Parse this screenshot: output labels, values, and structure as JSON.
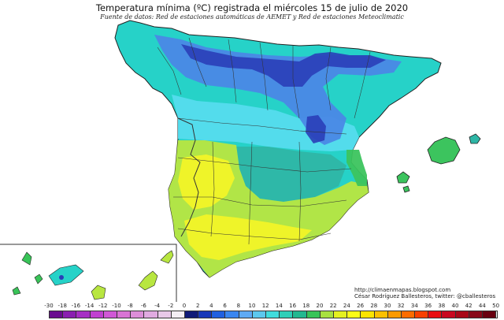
{
  "title": "Temperatura mínima (ºC) registrada el miércoles 15 de julio de 2020",
  "subtitle": "Fuente de datos: Red de estaciones automáticas de AEMET y Red de estaciones Meteoclimatic",
  "credit": {
    "url": "http://climaenmapas.blogspot.com",
    "author": "César Rodríguez Ballesteros, twitter: @cballesteros"
  },
  "legend": {
    "labels": [
      "-30",
      "-18",
      "-16",
      "-14",
      "-12",
      "-10",
      "-8",
      "-6",
      "-4",
      "-2",
      "0",
      "2",
      "4",
      "6",
      "8",
      "10",
      "12",
      "14",
      "16",
      "18",
      "20",
      "22",
      "24",
      "26",
      "28",
      "30",
      "32",
      "34",
      "36",
      "38",
      "40",
      "42",
      "44",
      "50"
    ],
    "colors": [
      "#6a0d8f",
      "#8a1fb0",
      "#a62fc4",
      "#c040d0",
      "#d058d6",
      "#d874d4",
      "#dc8ed8",
      "#e0aae0",
      "#e8c8e8",
      "#f4eef4",
      "#101a78",
      "#1838b8",
      "#2060e0",
      "#3a86f0",
      "#5eaaf4",
      "#5cc8ee",
      "#40dcdc",
      "#2ecfb8",
      "#22b890",
      "#38c458",
      "#a8e040",
      "#e4f020",
      "#fcfc18",
      "#fce400",
      "#fcc000",
      "#fc9a00",
      "#fc6c00",
      "#f84000",
      "#e80e10",
      "#c80820",
      "#a80818",
      "#880818",
      "#680010"
    ]
  },
  "colors": {
    "sea": "#ffffff",
    "coast": "#222222",
    "border": "#333333",
    "canary_box": "#333333"
  },
  "layers": [
    {
      "name": "cyan",
      "color": "#26d2c8"
    },
    {
      "name": "teal",
      "color": "#2eb6a6"
    },
    {
      "name": "lightcyan",
      "color": "#55dcee"
    },
    {
      "name": "blue",
      "color": "#4a88e6"
    },
    {
      "name": "darkblue",
      "color": "#2a3eb8"
    },
    {
      "name": "yellowgreen",
      "color": "#b8e640"
    },
    {
      "name": "yellow",
      "color": "#f2f428"
    },
    {
      "name": "green",
      "color": "#3cc45e"
    }
  ]
}
